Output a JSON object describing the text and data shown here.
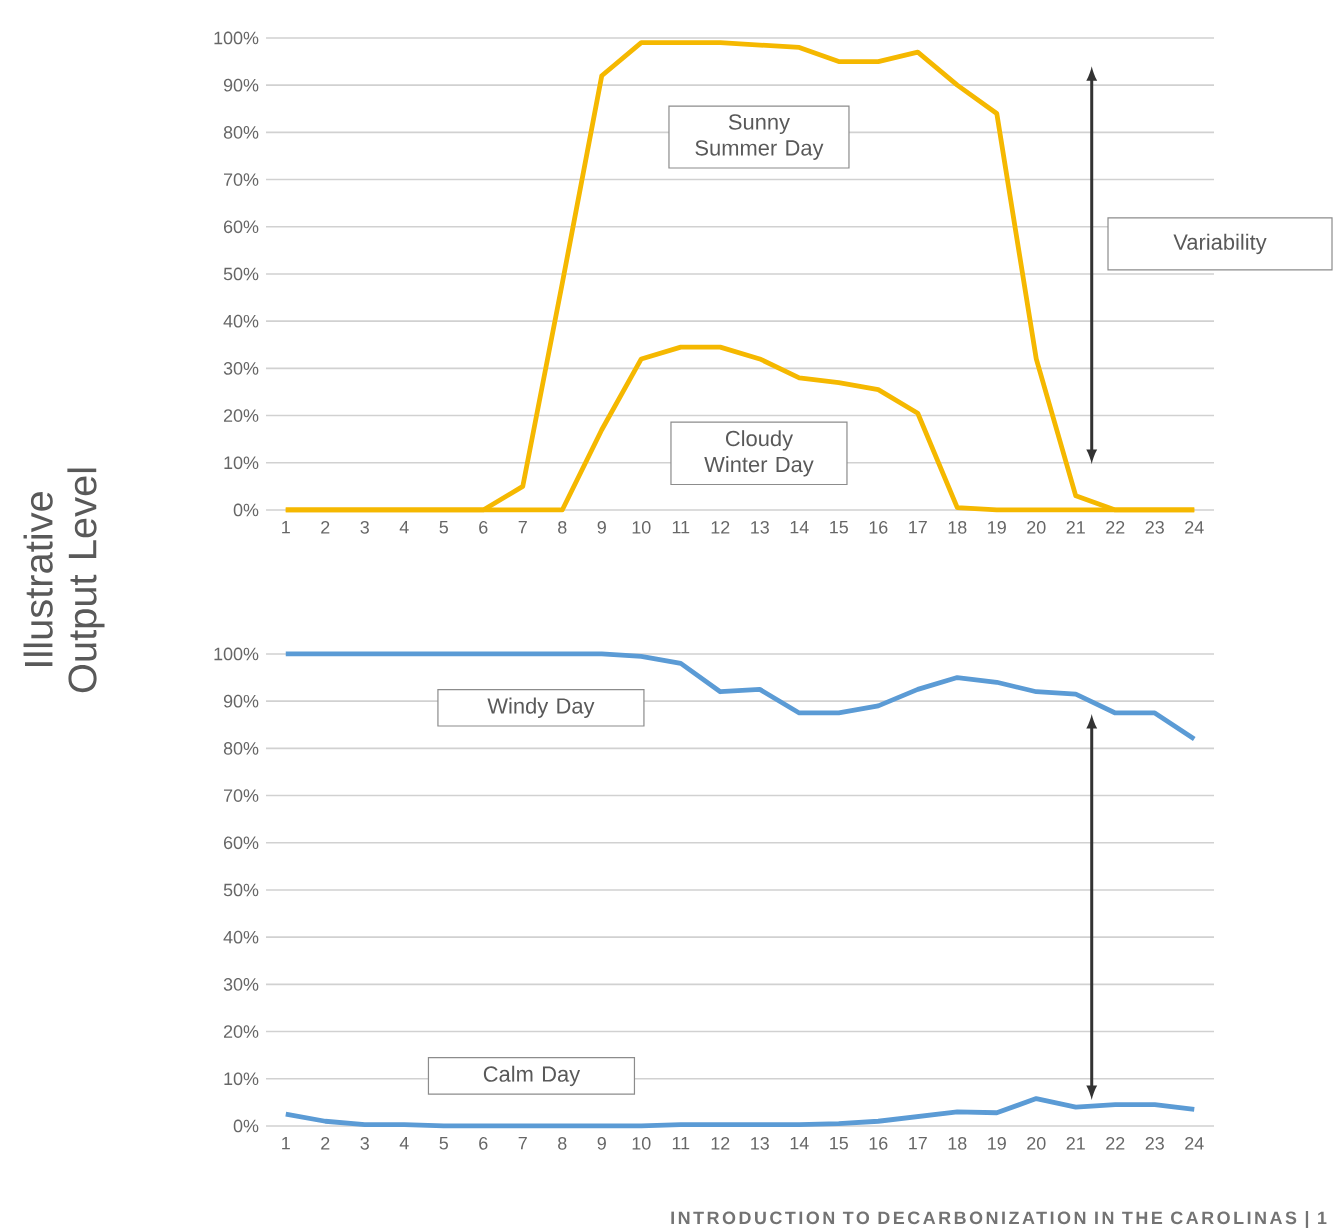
{
  "chart_data": [
    {
      "type": "line",
      "ylabel": "Illustrative Output Level",
      "categories": [
        "1",
        "2",
        "3",
        "4",
        "5",
        "6",
        "7",
        "8",
        "9",
        "10",
        "11",
        "12",
        "13",
        "14",
        "15",
        "16",
        "17",
        "18",
        "19",
        "20",
        "21",
        "22",
        "23",
        "24"
      ],
      "series": [
        {
          "name": "Sunny Summer Day",
          "color": "#f5b800",
          "values": [
            0,
            0,
            0,
            0,
            0,
            0,
            5,
            48,
            92,
            99,
            99,
            99,
            98.5,
            98,
            95,
            95,
            97,
            90,
            84,
            32,
            3,
            0,
            0,
            0
          ]
        },
        {
          "name": "Cloudy Winter Day",
          "color": "#f5b800",
          "values": [
            0,
            0,
            0,
            0,
            0,
            0,
            0,
            0,
            17,
            32,
            34.5,
            34.5,
            32,
            28,
            27,
            25.5,
            20.5,
            0.5,
            0,
            0,
            0,
            0,
            0,
            0
          ]
        }
      ],
      "ylim": [
        0,
        100
      ],
      "yticks": [
        {
          "value": 0,
          "label": "0%"
        },
        {
          "value": 10,
          "label": "10%"
        },
        {
          "value": 20,
          "label": "20%"
        },
        {
          "value": 30,
          "label": "30%"
        },
        {
          "value": 40,
          "label": "40%"
        },
        {
          "value": 50,
          "label": "50%"
        },
        {
          "value": 60,
          "label": "60%"
        },
        {
          "value": 70,
          "label": "70%"
        },
        {
          "value": 80,
          "label": "80%"
        },
        {
          "value": 90,
          "label": "90%"
        },
        {
          "value": 100,
          "label": "100%"
        }
      ],
      "grid": "y",
      "annotations": [
        "Variability"
      ]
    },
    {
      "type": "line",
      "categories": [
        "1",
        "2",
        "3",
        "4",
        "5",
        "6",
        "7",
        "8",
        "9",
        "10",
        "11",
        "12",
        "13",
        "14",
        "15",
        "16",
        "17",
        "18",
        "19",
        "20",
        "21",
        "22",
        "23",
        "24"
      ],
      "series": [
        {
          "name": "Windy Day",
          "color": "#5b9bd5",
          "values": [
            100,
            100,
            100,
            100,
            100,
            100,
            100,
            100,
            100,
            99.5,
            98,
            92,
            92.5,
            87.5,
            87.5,
            89,
            92.5,
            95,
            94,
            92,
            91.5,
            87.5,
            87.5,
            82
          ]
        },
        {
          "name": "Calm Day",
          "color": "#5b9bd5",
          "values": [
            2.5,
            1,
            0.3,
            0.3,
            0,
            0,
            0,
            0,
            0,
            0,
            0.3,
            0.3,
            0.3,
            0.3,
            0.5,
            1,
            2,
            3,
            2.8,
            5.8,
            4,
            4.5,
            4.5,
            3.5
          ]
        }
      ],
      "ylim": [
        0,
        100
      ],
      "yticks": [
        {
          "value": 0,
          "label": "0%"
        },
        {
          "value": 10,
          "label": "10%"
        },
        {
          "value": 20,
          "label": "20%"
        },
        {
          "value": 30,
          "label": "30%"
        },
        {
          "value": 40,
          "label": "40%"
        },
        {
          "value": 50,
          "label": "50%"
        },
        {
          "value": 60,
          "label": "60%"
        },
        {
          "value": 70,
          "label": "70%"
        },
        {
          "value": 80,
          "label": "80%"
        },
        {
          "value": 90,
          "label": "90%"
        },
        {
          "value": 100,
          "label": "100%"
        }
      ],
      "grid": "y",
      "annotations": [
        "INTRODUCTION TO DECARBONIZATION IN THE CAROLINAS | 1"
      ]
    }
  ]
}
